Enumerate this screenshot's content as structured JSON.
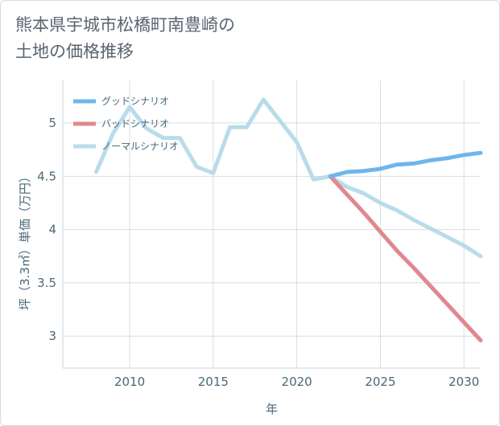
{
  "title_lines": [
    "熊本県宇城市松橋町南豊崎の",
    "土地の価格推移"
  ],
  "chart_data": {
    "type": "line",
    "xlabel": "年",
    "ylabel": "坪（3.3㎡）単価（万円）",
    "xlim": [
      2006,
      2031
    ],
    "ylim": [
      2.7,
      5.4
    ],
    "x_ticks": [
      2010,
      2015,
      2020,
      2025,
      2030
    ],
    "y_ticks": [
      3,
      3.5,
      4,
      4.5,
      5
    ],
    "y_tick_labels": [
      "3",
      "3.5",
      "4",
      "4.5",
      "5"
    ],
    "grid": true,
    "legend_position": "top-left",
    "series": [
      {
        "name": "グッドシナリオ",
        "color": "#6fb6ea",
        "x": [
          2022,
          2023,
          2024,
          2025,
          2026,
          2027,
          2028,
          2029,
          2030,
          2031
        ],
        "values": [
          4.5,
          4.54,
          4.55,
          4.57,
          4.61,
          4.62,
          4.65,
          4.67,
          4.7,
          4.72
        ]
      },
      {
        "name": "バッドシナリオ",
        "color": "#e0888e",
        "x": [
          2022,
          2023,
          2024,
          2025,
          2026,
          2027,
          2028,
          2029,
          2030,
          2031
        ],
        "values": [
          4.5,
          4.33,
          4.16,
          3.98,
          3.8,
          3.64,
          3.47,
          3.3,
          3.13,
          2.96
        ]
      },
      {
        "name": "ノーマルシナリオ",
        "color": "#b8dcea",
        "x": [
          2008,
          2009,
          2010,
          2011,
          2012,
          2013,
          2014,
          2015,
          2016,
          2017,
          2018,
          2019,
          2020,
          2021,
          2022,
          2023,
          2024,
          2025,
          2026,
          2027,
          2028,
          2029,
          2030,
          2031
        ],
        "values": [
          4.54,
          4.9,
          5.15,
          4.95,
          4.86,
          4.86,
          4.59,
          4.53,
          4.96,
          4.96,
          5.22,
          5.02,
          4.82,
          4.47,
          4.5,
          4.4,
          4.34,
          4.25,
          4.18,
          4.09,
          4.01,
          3.93,
          3.85,
          3.75
        ]
      }
    ]
  }
}
